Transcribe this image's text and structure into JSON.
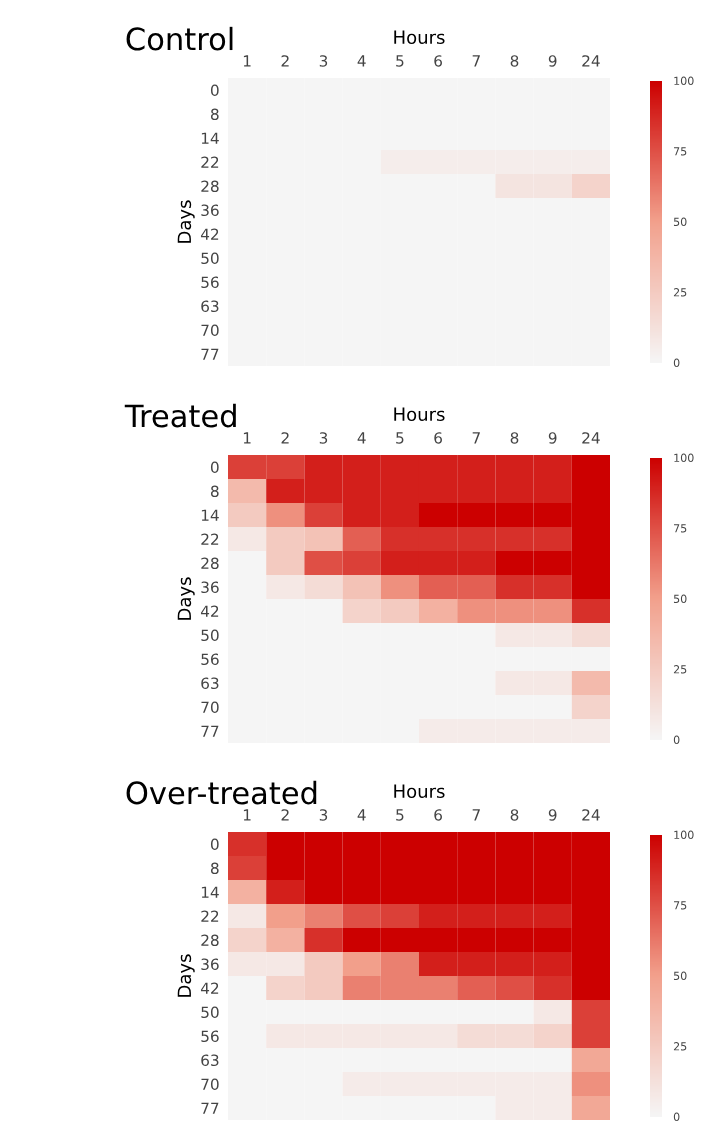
{
  "chart_data": [
    {
      "type": "heatmap",
      "title": "Control",
      "xlabel": "Hours",
      "ylabel": "Days",
      "categories": [
        "1",
        "2",
        "3",
        "4",
        "5",
        "6",
        "7",
        "8",
        "9",
        "24"
      ],
      "y_categories": [
        "0",
        "8",
        "14",
        "22",
        "28",
        "36",
        "42",
        "50",
        "56",
        "63",
        "70",
        "77"
      ],
      "cells": [
        [
          0,
          0,
          0,
          0,
          0,
          0,
          0,
          0,
          0,
          0
        ],
        [
          0,
          0,
          0,
          0,
          0,
          0,
          0,
          0,
          0,
          0
        ],
        [
          0,
          0,
          0,
          0,
          0,
          0,
          0,
          0,
          0,
          0
        ],
        [
          0,
          0,
          0,
          0,
          5,
          5,
          5,
          5,
          5,
          5
        ],
        [
          0,
          0,
          0,
          0,
          0,
          0,
          0,
          10,
          10,
          20
        ],
        [
          0,
          0,
          0,
          0,
          0,
          0,
          0,
          0,
          0,
          0
        ],
        [
          0,
          0,
          0,
          0,
          0,
          0,
          0,
          0,
          0,
          0
        ],
        [
          0,
          0,
          0,
          0,
          0,
          0,
          0,
          0,
          0,
          0
        ],
        [
          0,
          0,
          0,
          0,
          0,
          0,
          0,
          0,
          0,
          0
        ],
        [
          0,
          0,
          0,
          0,
          0,
          0,
          0,
          0,
          0,
          0
        ],
        [
          0,
          0,
          0,
          0,
          0,
          0,
          0,
          0,
          0,
          0
        ],
        [
          0,
          0,
          0,
          0,
          0,
          0,
          0,
          0,
          0,
          0
        ]
      ],
      "clim": [
        0,
        100
      ],
      "cticks": [
        0,
        25,
        50,
        75,
        100
      ]
    },
    {
      "type": "heatmap",
      "title": "Treated",
      "xlabel": "Hours",
      "ylabel": "Days",
      "categories": [
        "1",
        "2",
        "3",
        "4",
        "5",
        "6",
        "7",
        "8",
        "9",
        "24"
      ],
      "y_categories": [
        "0",
        "8",
        "14",
        "22",
        "28",
        "36",
        "42",
        "50",
        "56",
        "63",
        "70",
        "77"
      ],
      "cells": [
        [
          80,
          80,
          90,
          90,
          90,
          90,
          90,
          90,
          90,
          100
        ],
        [
          35,
          90,
          90,
          90,
          90,
          90,
          90,
          90,
          90,
          100
        ],
        [
          25,
          55,
          80,
          90,
          90,
          100,
          100,
          100,
          100,
          100
        ],
        [
          8,
          25,
          30,
          70,
          85,
          85,
          85,
          85,
          85,
          100
        ],
        [
          0,
          25,
          75,
          80,
          90,
          90,
          90,
          100,
          100,
          100
        ],
        [
          0,
          8,
          15,
          30,
          55,
          70,
          70,
          85,
          85,
          100
        ],
        [
          0,
          0,
          0,
          20,
          25,
          40,
          55,
          55,
          55,
          85
        ],
        [
          0,
          0,
          0,
          0,
          0,
          0,
          0,
          8,
          8,
          15
        ],
        [
          0,
          0,
          0,
          0,
          0,
          0,
          0,
          0,
          0,
          0
        ],
        [
          0,
          0,
          0,
          0,
          0,
          0,
          0,
          8,
          8,
          35
        ],
        [
          0,
          0,
          0,
          0,
          0,
          0,
          0,
          0,
          0,
          20
        ],
        [
          0,
          0,
          0,
          0,
          0,
          6,
          6,
          6,
          6,
          6
        ]
      ],
      "clim": [
        0,
        100
      ],
      "cticks": [
        0,
        25,
        50,
        75,
        100
      ]
    },
    {
      "type": "heatmap",
      "title": "Over-treated",
      "xlabel": "Hours",
      "ylabel": "Days",
      "categories": [
        "1",
        "2",
        "3",
        "4",
        "5",
        "6",
        "7",
        "8",
        "9",
        "24"
      ],
      "y_categories": [
        "0",
        "8",
        "14",
        "22",
        "28",
        "36",
        "42",
        "50",
        "56",
        "63",
        "70",
        "77"
      ],
      "cells": [
        [
          85,
          100,
          100,
          100,
          100,
          100,
          100,
          100,
          100,
          100
        ],
        [
          80,
          100,
          100,
          100,
          100,
          100,
          100,
          100,
          100,
          100
        ],
        [
          40,
          90,
          100,
          100,
          100,
          100,
          100,
          100,
          100,
          100
        ],
        [
          8,
          50,
          60,
          75,
          80,
          90,
          90,
          90,
          90,
          100
        ],
        [
          20,
          40,
          85,
          100,
          100,
          100,
          100,
          100,
          100,
          100
        ],
        [
          8,
          8,
          25,
          50,
          60,
          90,
          90,
          90,
          90,
          100
        ],
        [
          0,
          20,
          25,
          60,
          60,
          60,
          70,
          75,
          85,
          100
        ],
        [
          0,
          0,
          0,
          0,
          0,
          0,
          0,
          0,
          8,
          80
        ],
        [
          0,
          8,
          8,
          8,
          8,
          8,
          15,
          15,
          20,
          80
        ],
        [
          0,
          0,
          0,
          0,
          0,
          0,
          0,
          0,
          0,
          45
        ],
        [
          0,
          0,
          0,
          6,
          6,
          6,
          6,
          6,
          6,
          55
        ],
        [
          0,
          0,
          0,
          0,
          0,
          0,
          0,
          6,
          6,
          45
        ]
      ],
      "clim": [
        0,
        100
      ],
      "cticks": [
        0,
        25,
        50,
        75,
        100
      ]
    }
  ]
}
